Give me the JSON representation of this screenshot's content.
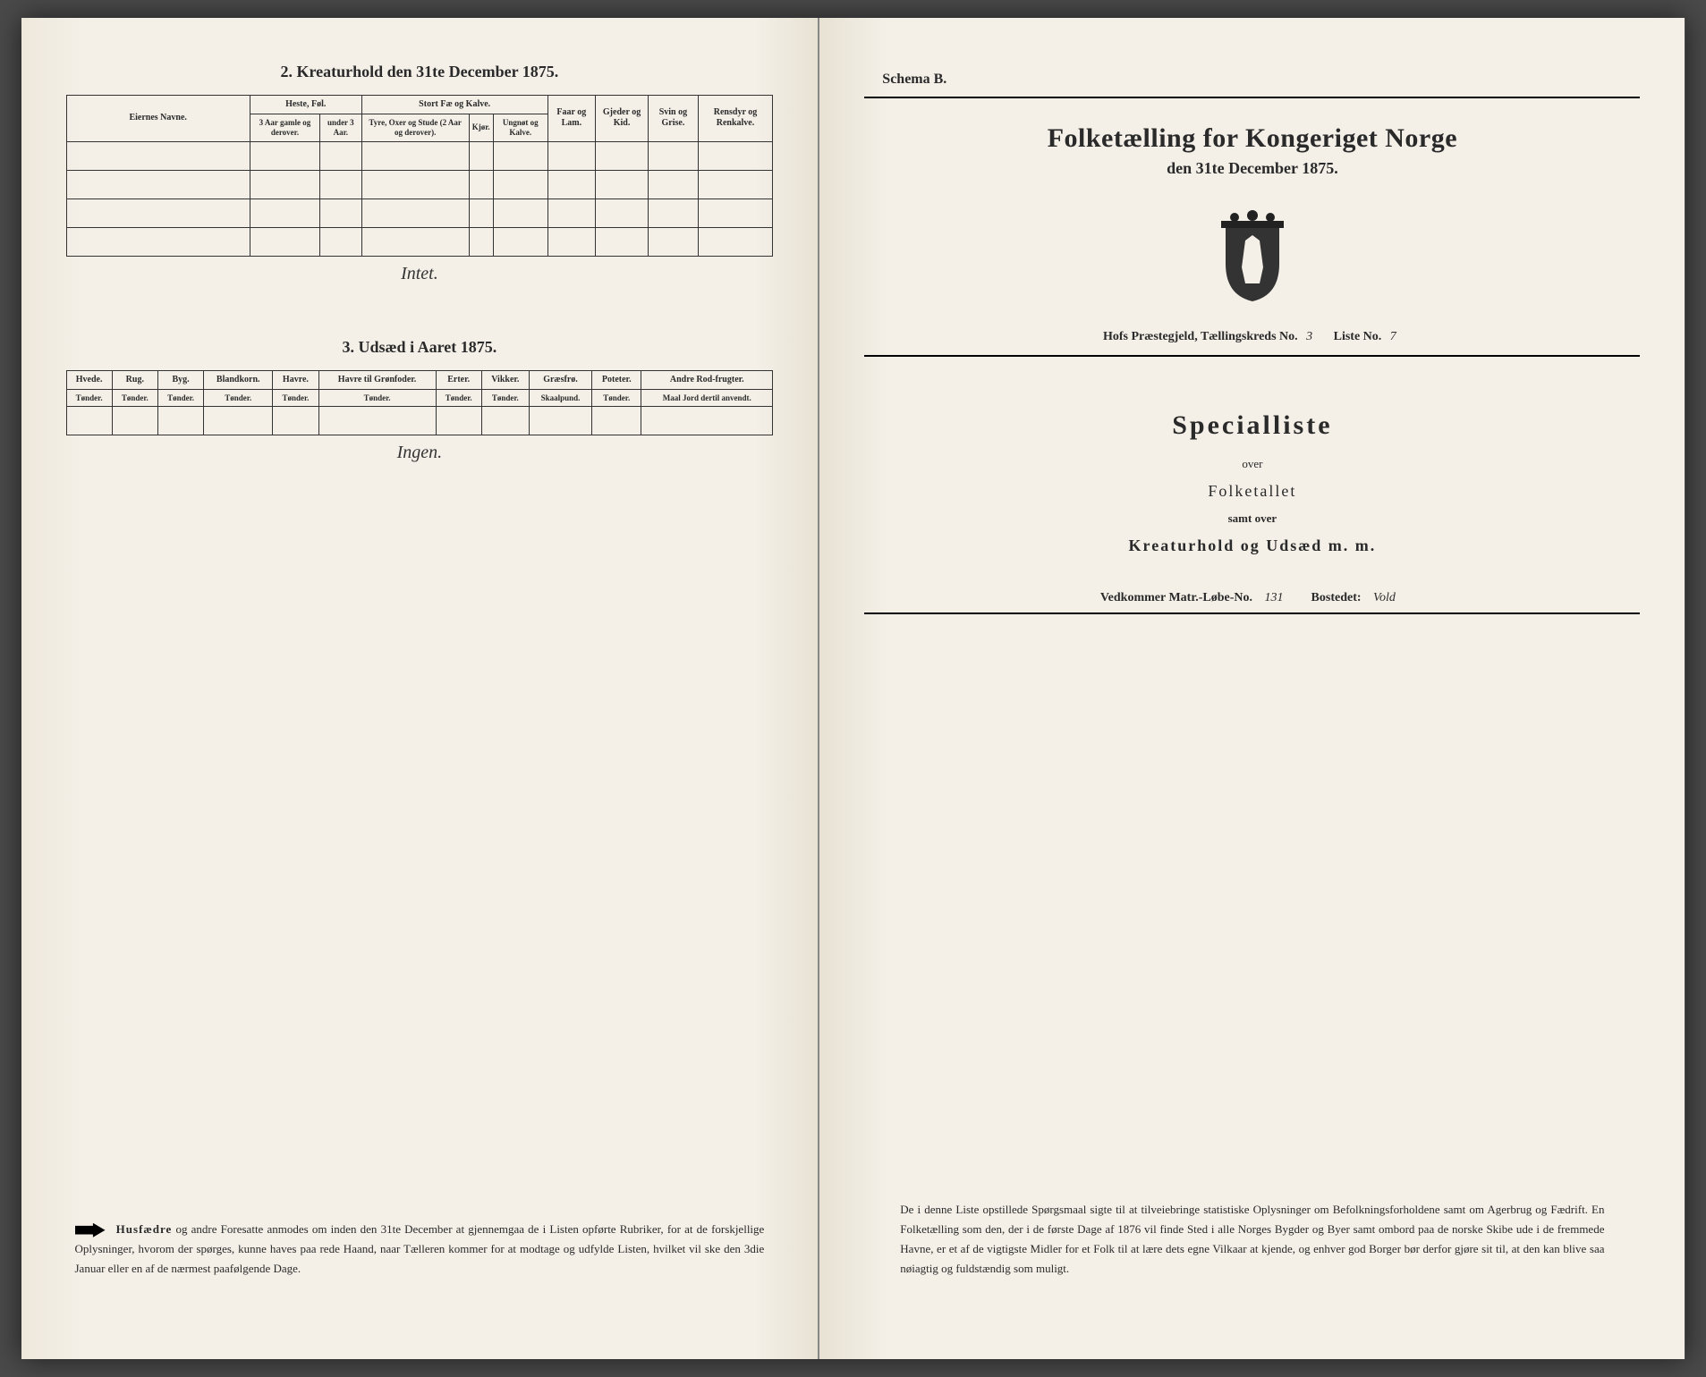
{
  "left": {
    "section2_title": "2. Kreaturhold den 31te December 1875.",
    "table2": {
      "col_owner": "Eiernes Navne.",
      "grp_heste": "Heste, Føl.",
      "grp_stort": "Stort Fæ og Kalve.",
      "col_faar": "Faar og Lam.",
      "col_gjeder": "Gjeder og Kid.",
      "col_svin": "Svin og Grise.",
      "col_rensdyr": "Rensdyr og Renkalve.",
      "sub_heste1": "3 Aar gamle og derover.",
      "sub_heste2": "under 3 Aar.",
      "sub_stort1": "Tyre, Oxer og Stude (2 Aar og derover).",
      "sub_stort2": "Kjør.",
      "sub_stort3": "Ungnøt og Kalve."
    },
    "hand2": "Intet.",
    "section3_title": "3. Udsæd i Aaret 1875.",
    "table3": {
      "cols": [
        "Hvede.",
        "Rug.",
        "Byg.",
        "Blandkorn.",
        "Havre.",
        "Havre til Grønfoder.",
        "Erter.",
        "Vikker.",
        "Græsfrø.",
        "Poteter.",
        "Andre Rod-frugter."
      ],
      "units": [
        "Tønder.",
        "Tønder.",
        "Tønder.",
        "Tønder.",
        "Tønder.",
        "Tønder.",
        "Tønder.",
        "Tønder.",
        "Skaalpund.",
        "Tønder.",
        "Maal Jord dertil anvendt."
      ]
    },
    "hand3": "Ingen.",
    "footer_lead": "Husfædre",
    "footer_text": " og andre Foresatte anmodes om inden den 31te December at gjennemgaa de i Listen opførte Rubriker, for at de forskjellige Oplysninger, hvorom der spørges, kunne haves paa rede Haand, naar Tælleren kommer for at modtage og udfylde Listen, hvilket vil ske den 3die Januar eller en af de nærmest paafølgende Dage."
  },
  "right": {
    "schema": "Schema B.",
    "title": "Folketælling for Kongeriget Norge",
    "subtitle": "den 31te December 1875.",
    "parish_label": "Hofs Præstegjeld,  Tællingskreds No.",
    "kreds_no": "3",
    "liste_label": "Liste No.",
    "liste_no": "7",
    "spec_title": "Specialliste",
    "over": "over",
    "folketallet": "Folketallet",
    "samt": "samt over",
    "kreatur": "Kreaturhold og Udsæd m. m.",
    "matr_label": "Vedkommer Matr.-Løbe-No.",
    "matr_no": "131",
    "bosted_label": "Bostedet:",
    "bosted": "Vold",
    "footer": "De i denne Liste opstillede Spørgsmaal sigte til at tilveiebringe statistiske Oplysninger om Befolkningsforholdene samt om Agerbrug og Fædrift. En Folketælling som den, der i de første Dage af 1876 vil finde Sted i alle Norges Bygder og Byer samt ombord paa de norske Skibe ude i de fremmede Havne, er et af de vigtigste Midler for et Folk til at lære dets egne Vilkaar at kjende, og enhver god Borger bør derfor gjøre sit til, at den kan blive saa nøiagtig og fuldstændig som muligt."
  }
}
